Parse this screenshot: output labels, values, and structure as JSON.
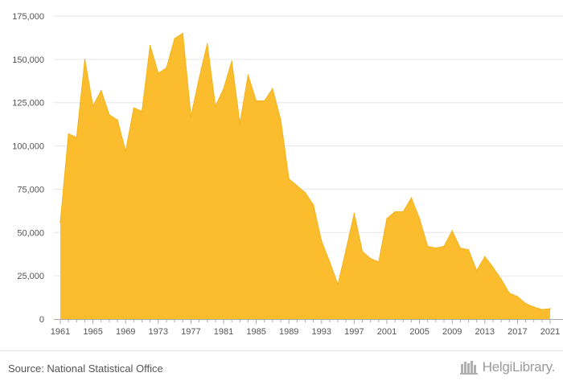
{
  "chart_data": {
    "type": "area",
    "title": "",
    "xlabel": "",
    "ylabel": "",
    "x": [
      1961,
      1962,
      1963,
      1964,
      1965,
      1966,
      1967,
      1968,
      1969,
      1970,
      1971,
      1972,
      1973,
      1974,
      1975,
      1976,
      1977,
      1978,
      1979,
      1980,
      1981,
      1982,
      1983,
      1984,
      1985,
      1986,
      1987,
      1988,
      1989,
      1990,
      1991,
      1992,
      1993,
      1994,
      1995,
      1996,
      1997,
      1998,
      1999,
      2000,
      2001,
      2002,
      2003,
      2004,
      2005,
      2006,
      2007,
      2008,
      2009,
      2010,
      2011,
      2012,
      2013,
      2014,
      2015,
      2016,
      2017,
      2018,
      2019,
      2020,
      2021
    ],
    "values": [
      56000,
      107000,
      105000,
      150000,
      123000,
      132000,
      118000,
      115000,
      97000,
      122000,
      120000,
      158000,
      142000,
      145000,
      162000,
      165000,
      117000,
      139000,
      159000,
      123000,
      133000,
      149000,
      113000,
      141000,
      126000,
      126000,
      133000,
      115000,
      81000,
      77000,
      73000,
      66000,
      45000,
      33000,
      20000,
      40000,
      61000,
      39000,
      35000,
      33000,
      58000,
      62000,
      62000,
      70000,
      58000,
      42000,
      41000,
      42000,
      51000,
      41000,
      40000,
      28000,
      36000,
      30000,
      23000,
      15000,
      13000,
      9000,
      7000,
      5500,
      6000
    ],
    "ylim": [
      0,
      175000
    ],
    "yticks": [
      0,
      25000,
      50000,
      75000,
      100000,
      125000,
      150000,
      175000
    ],
    "ytick_labels": [
      "0",
      "25,000",
      "50,000",
      "75,000",
      "100,000",
      "125,000",
      "150,000",
      "175,000"
    ],
    "xtick_labels": [
      "1961",
      "1965",
      "1969",
      "1973",
      "1977",
      "1981",
      "1985",
      "1989",
      "1993",
      "1997",
      "2001",
      "2005",
      "2009",
      "2013",
      "2017",
      "2021"
    ],
    "grid": true,
    "colors": {
      "fill": "#fbbc2d",
      "line": "#f2b51c",
      "grid": "#e6e6e6",
      "axis": "#aaaaaa",
      "text": "#555555"
    }
  },
  "footer": {
    "source": "Source: National Statistical Office",
    "brand": "HelgiLibrary."
  }
}
